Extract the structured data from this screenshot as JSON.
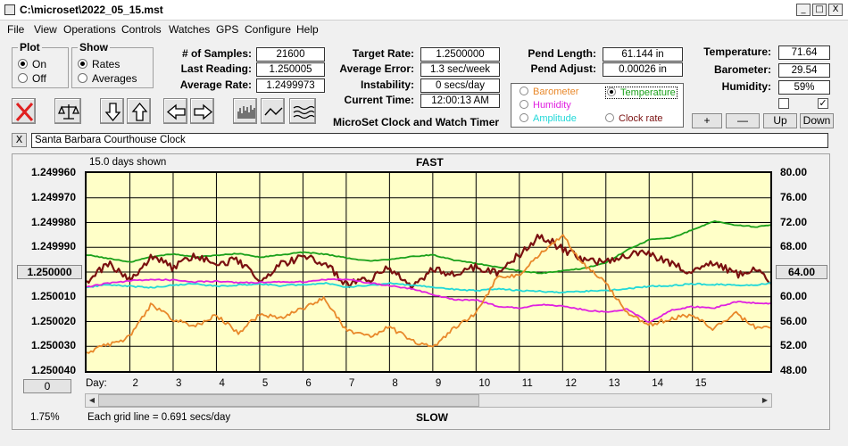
{
  "window": {
    "title": "C:\\microset\\2022_05_15.mst",
    "min": "_",
    "max": "□",
    "close": "X"
  },
  "menu": [
    "File",
    "View",
    "Operations",
    "Controls",
    "Watches",
    "GPS",
    "Configure",
    "Help"
  ],
  "plot_group": {
    "title": "Plot",
    "options": [
      "On",
      "Off"
    ],
    "selected": 0
  },
  "show_group": {
    "title": "Show",
    "options": [
      "Rates",
      "Averages"
    ],
    "selected": 0
  },
  "stats": {
    "samples_label": "# of Samples:",
    "samples": "21600",
    "last_reading_label": "Last Reading:",
    "last_reading": "1.250005",
    "average_rate_label": "Average Rate:",
    "average_rate": "1.2499973",
    "target_rate_label": "Target Rate:",
    "target_rate": "1.2500000",
    "average_error_label": "Average Error:",
    "average_error": "1.3 sec/week",
    "instability_label": "Instability:",
    "instability": "0 secs/day",
    "current_time_label": "Current Time:",
    "current_time": "12:00:13 AM",
    "pend_length_label": "Pend Length:",
    "pend_length": "61.144 in",
    "pend_adjust_label": "Pend Adjust:",
    "pend_adjust": "0.00026 in",
    "temperature_label": "Temperature:",
    "temperature": "71.64",
    "barometer_label": "Barometer:",
    "barometer": "29.54",
    "humidity_label": "Humidity:",
    "humidity": "59%"
  },
  "product_title": "MicroSet Clock and Watch Timer",
  "legend": {
    "items": [
      {
        "label": "Barometer",
        "color": "#e8882a",
        "selected": false
      },
      {
        "label": "Temperature",
        "color": "#1aa01a",
        "selected": true
      },
      {
        "label": "Humidity",
        "color": "#e020e0",
        "selected": false
      },
      {
        "label": "Clock rate",
        "color": "#7a1010",
        "selected": false
      },
      {
        "label": "Amplitude",
        "color": "#20d8d8",
        "selected": false
      }
    ]
  },
  "adjust_buttons": [
    "+",
    "—",
    "Up",
    "Down"
  ],
  "checkboxes": [
    {
      "checked": false
    },
    {
      "checked": true
    }
  ],
  "watch": {
    "close": "X",
    "name": "Santa Barbara Courthouse Clock"
  },
  "chart": {
    "top_label": "FAST",
    "bottom_label": "SLOW",
    "days_shown": "15.0 days shown",
    "grid_note": "Each grid line = 0.691 secs/day",
    "percent": "1.75%",
    "day_label": "Day:",
    "left_button": "1.250000",
    "right_button": "64.00",
    "zero_button": "0"
  },
  "chart_data": {
    "type": "line",
    "x_label": "Day:",
    "x_ticks": [
      "2",
      "3",
      "4",
      "5",
      "6",
      "7",
      "8",
      "9",
      "10",
      "11",
      "12",
      "13",
      "14",
      "15"
    ],
    "xlim": [
      1,
      16.8
    ],
    "y_left": {
      "ticks": [
        "1.249960",
        "1.249970",
        "1.249980",
        "1.249990",
        "1.250000",
        "1.250010",
        "1.250020",
        "1.250030",
        "1.250040"
      ],
      "ylim": [
        1.24996,
        1.25004
      ],
      "reversed": true
    },
    "y_right": {
      "ticks": [
        "80.00",
        "76.00",
        "72.00",
        "68.00",
        "64.00",
        "60.00",
        "56.00",
        "52.00",
        "48.00"
      ],
      "ylim": [
        48,
        80
      ]
    },
    "series": [
      {
        "name": "Temperature",
        "color": "#1aa01a",
        "x": [
          1,
          1.5,
          2,
          2.5,
          3,
          3.5,
          4,
          4.5,
          5,
          5.5,
          6,
          6.5,
          7,
          7.5,
          8,
          8.5,
          9,
          9.5,
          10,
          10.5,
          11,
          11.5,
          12,
          12.5,
          13,
          13.5,
          14,
          14.5,
          15,
          15.5,
          16,
          16.5,
          16.8
        ],
        "y": [
          66.8,
          66.2,
          65.6,
          66.5,
          66.9,
          66.4,
          66.7,
          67.0,
          66.4,
          66.8,
          67.2,
          66.9,
          66.3,
          65.8,
          66.0,
          66.5,
          66.8,
          65.9,
          65.4,
          64.8,
          64.2,
          63.8,
          64.2,
          64.6,
          65.5,
          67.6,
          69.2,
          69.5,
          70.8,
          72.2,
          71.6,
          71.3,
          71.6
        ]
      },
      {
        "name": "Clock rate",
        "color": "#7a1010",
        "x": [
          1,
          1.5,
          2,
          2.5,
          3,
          3.5,
          4,
          4.5,
          5,
          5.5,
          6,
          6.5,
          7,
          7.5,
          8,
          8.5,
          9,
          9.5,
          10,
          10.5,
          11,
          11.5,
          12,
          12.5,
          13,
          13.5,
          14,
          14.5,
          15,
          15.5,
          16,
          16.5,
          16.8
        ],
        "y": [
          1.250005,
          1.249996,
          1.250003,
          1.249994,
          1.249998,
          1.249993,
          1.249997,
          1.249995,
          1.250004,
          1.249997,
          1.249994,
          1.249996,
          1.250005,
          1.250003,
          1.249998,
          1.250006,
          1.249999,
          1.250001,
          1.249998,
          1.25,
          1.249993,
          1.249985,
          1.249991,
          1.249995,
          1.249996,
          1.249993,
          1.249992,
          1.249997,
          1.25,
          1.249996,
          1.250001,
          1.249999,
          1.250005
        ]
      },
      {
        "name": "Amplitude",
        "color": "#20d8d8",
        "x": [
          1,
          1.5,
          2,
          2.5,
          3,
          3.5,
          4,
          4.5,
          5,
          5.5,
          6,
          6.5,
          7,
          7.5,
          8,
          8.5,
          9,
          9.5,
          10,
          10.5,
          11,
          11.5,
          12,
          12.5,
          13,
          13.5,
          14,
          14.5,
          15,
          15.5,
          16,
          16.5,
          16.8
        ],
        "y": [
          61.5,
          62.0,
          61.7,
          61.5,
          61.9,
          62.1,
          61.7,
          61.9,
          62.1,
          61.8,
          62.0,
          62.2,
          61.6,
          61.8,
          62.2,
          61.9,
          61.6,
          61.2,
          61.0,
          61.3,
          61.0,
          60.9,
          60.7,
          60.9,
          61.0,
          61.3,
          61.7,
          61.8,
          62.1,
          62.0,
          61.9,
          61.9,
          62.2
        ]
      },
      {
        "name": "Humidity",
        "color": "#e020e0",
        "x": [
          1,
          1.5,
          2,
          2.5,
          3,
          3.5,
          4,
          4.5,
          5,
          5.5,
          6,
          6.5,
          7,
          7.5,
          8,
          8.5,
          9,
          9.5,
          10,
          10.5,
          11,
          11.5,
          12,
          12.5,
          13,
          13.5,
          14,
          14.5,
          15,
          15.5,
          16,
          16.5,
          16.8
        ],
        "y": [
          61.6,
          62.2,
          62.6,
          62.8,
          62.7,
          62.4,
          62.5,
          62.3,
          62.3,
          62.4,
          62.4,
          62.8,
          62.8,
          62.3,
          61.8,
          61.3,
          60.4,
          59.5,
          59.5,
          58.5,
          58.2,
          58.7,
          58.5,
          57.9,
          57.5,
          58.0,
          55.8,
          57.8,
          58.4,
          58.2,
          59.2,
          59.0,
          58.9
        ]
      },
      {
        "name": "Barometer",
        "color": "#e8882a",
        "x": [
          1,
          1.5,
          2,
          2.5,
          3,
          3.5,
          4,
          4.5,
          5,
          5.5,
          6,
          6.5,
          7,
          7.5,
          8,
          8.5,
          9,
          9.5,
          10,
          10.5,
          11,
          11.5,
          12,
          12.5,
          13,
          13.5,
          14,
          14.5,
          15,
          15.5,
          16,
          16.5,
          16.8
        ],
        "y": [
          51.0,
          52.3,
          53.5,
          58.8,
          56.4,
          55.2,
          57.0,
          54.2,
          57.1,
          56.5,
          58.2,
          59.7,
          54.6,
          53.5,
          55.1,
          53.0,
          51.8,
          55.1,
          57.3,
          63.2,
          63.4,
          67.2,
          69.8,
          65.2,
          62.1,
          57.4,
          55.5,
          56.5,
          57.1,
          54.8,
          57.3,
          54.9,
          55.0
        ]
      }
    ]
  }
}
